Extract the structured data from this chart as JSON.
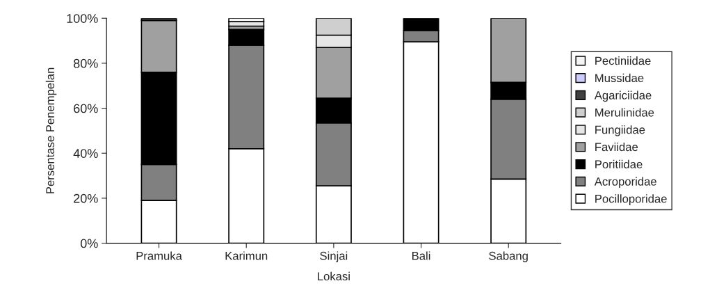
{
  "chart_data": {
    "type": "bar",
    "stacked": true,
    "xlabel": "Lokasi",
    "ylabel": "Persentase Penempelan",
    "categories": [
      "Pramuka",
      "Karimun",
      "Sinjai",
      "Bali",
      "Sabang"
    ],
    "ylim": [
      0,
      100
    ],
    "yticks": [
      {
        "value": 0,
        "label": "0%"
      },
      {
        "value": 20,
        "label": "20%"
      },
      {
        "value": 40,
        "label": "40%"
      },
      {
        "value": 60,
        "label": "60%"
      },
      {
        "value": 80,
        "label": "80%"
      },
      {
        "value": 100,
        "label": "100%"
      }
    ],
    "grid": false,
    "legend": "right",
    "series": [
      {
        "name": "Pocilloporidae",
        "color": "#ffffff",
        "values": [
          19,
          42,
          25.5,
          89.5,
          28.5
        ]
      },
      {
        "name": "Acroporidae",
        "color": "#808080",
        "values": [
          16,
          46,
          28,
          5,
          35.5
        ]
      },
      {
        "name": "Poritiidae",
        "color": "#000000",
        "values": [
          41,
          7,
          11,
          5.5,
          7.5
        ]
      },
      {
        "name": "Faviidae",
        "color": "#a0a0a0",
        "values": [
          23,
          1.5,
          22.5,
          0,
          28.5
        ]
      },
      {
        "name": "Fungiidae",
        "color": "#e6e6e6",
        "values": [
          0,
          2,
          5.5,
          0,
          0
        ]
      },
      {
        "name": "Merulinidae",
        "color": "#cfcfcf",
        "values": [
          0,
          0,
          7.5,
          0,
          0
        ]
      },
      {
        "name": "Agariciidae",
        "color": "#404040",
        "values": [
          1,
          0,
          0,
          0,
          0
        ]
      },
      {
        "name": "Mussidae",
        "color": "#ccccff",
        "values": [
          0,
          0,
          0,
          0,
          0
        ]
      },
      {
        "name": "Pectiniidae",
        "color": "#f5f5f5",
        "values": [
          0,
          1.5,
          0,
          0,
          0
        ]
      }
    ]
  }
}
